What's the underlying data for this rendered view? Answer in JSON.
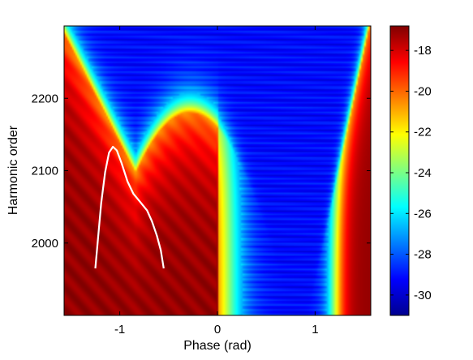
{
  "chart_data": {
    "type": "heatmap",
    "xlabel": "Phase (rad)",
    "ylabel": "Harmonic order",
    "xlim": [
      -1.57,
      1.57
    ],
    "ylim": [
      1900,
      2300
    ],
    "x_ticks": [
      -1,
      0,
      1
    ],
    "x_tick_labels": [
      "-1",
      "0",
      "1"
    ],
    "y_ticks": [
      2000,
      2100,
      2200
    ],
    "y_tick_labels": [
      "2000",
      "2100",
      "2200"
    ],
    "colormap": "jet",
    "colorbar": {
      "range": [
        -31,
        -16.8
      ],
      "ticks": [
        -30,
        -28,
        -26,
        -24,
        -22,
        -20,
        -18
      ],
      "tick_labels": [
        "-30",
        "-28",
        "-26",
        "-24",
        "-22",
        "-20",
        "-18"
      ]
    },
    "overlay_curve": {
      "color": "#ffffff",
      "points": [
        [
          -1.25,
          1965
        ],
        [
          -1.22,
          2010
        ],
        [
          -1.19,
          2055
        ],
        [
          -1.15,
          2098
        ],
        [
          -1.11,
          2125
        ],
        [
          -1.07,
          2133
        ],
        [
          -1.03,
          2128
        ],
        [
          -0.98,
          2110
        ],
        [
          -0.92,
          2085
        ],
        [
          -0.86,
          2068
        ],
        [
          -0.78,
          2055
        ],
        [
          -0.72,
          2045
        ],
        [
          -0.67,
          2030
        ],
        [
          -0.62,
          2010
        ],
        [
          -0.58,
          1990
        ],
        [
          -0.55,
          1965
        ]
      ]
    }
  }
}
